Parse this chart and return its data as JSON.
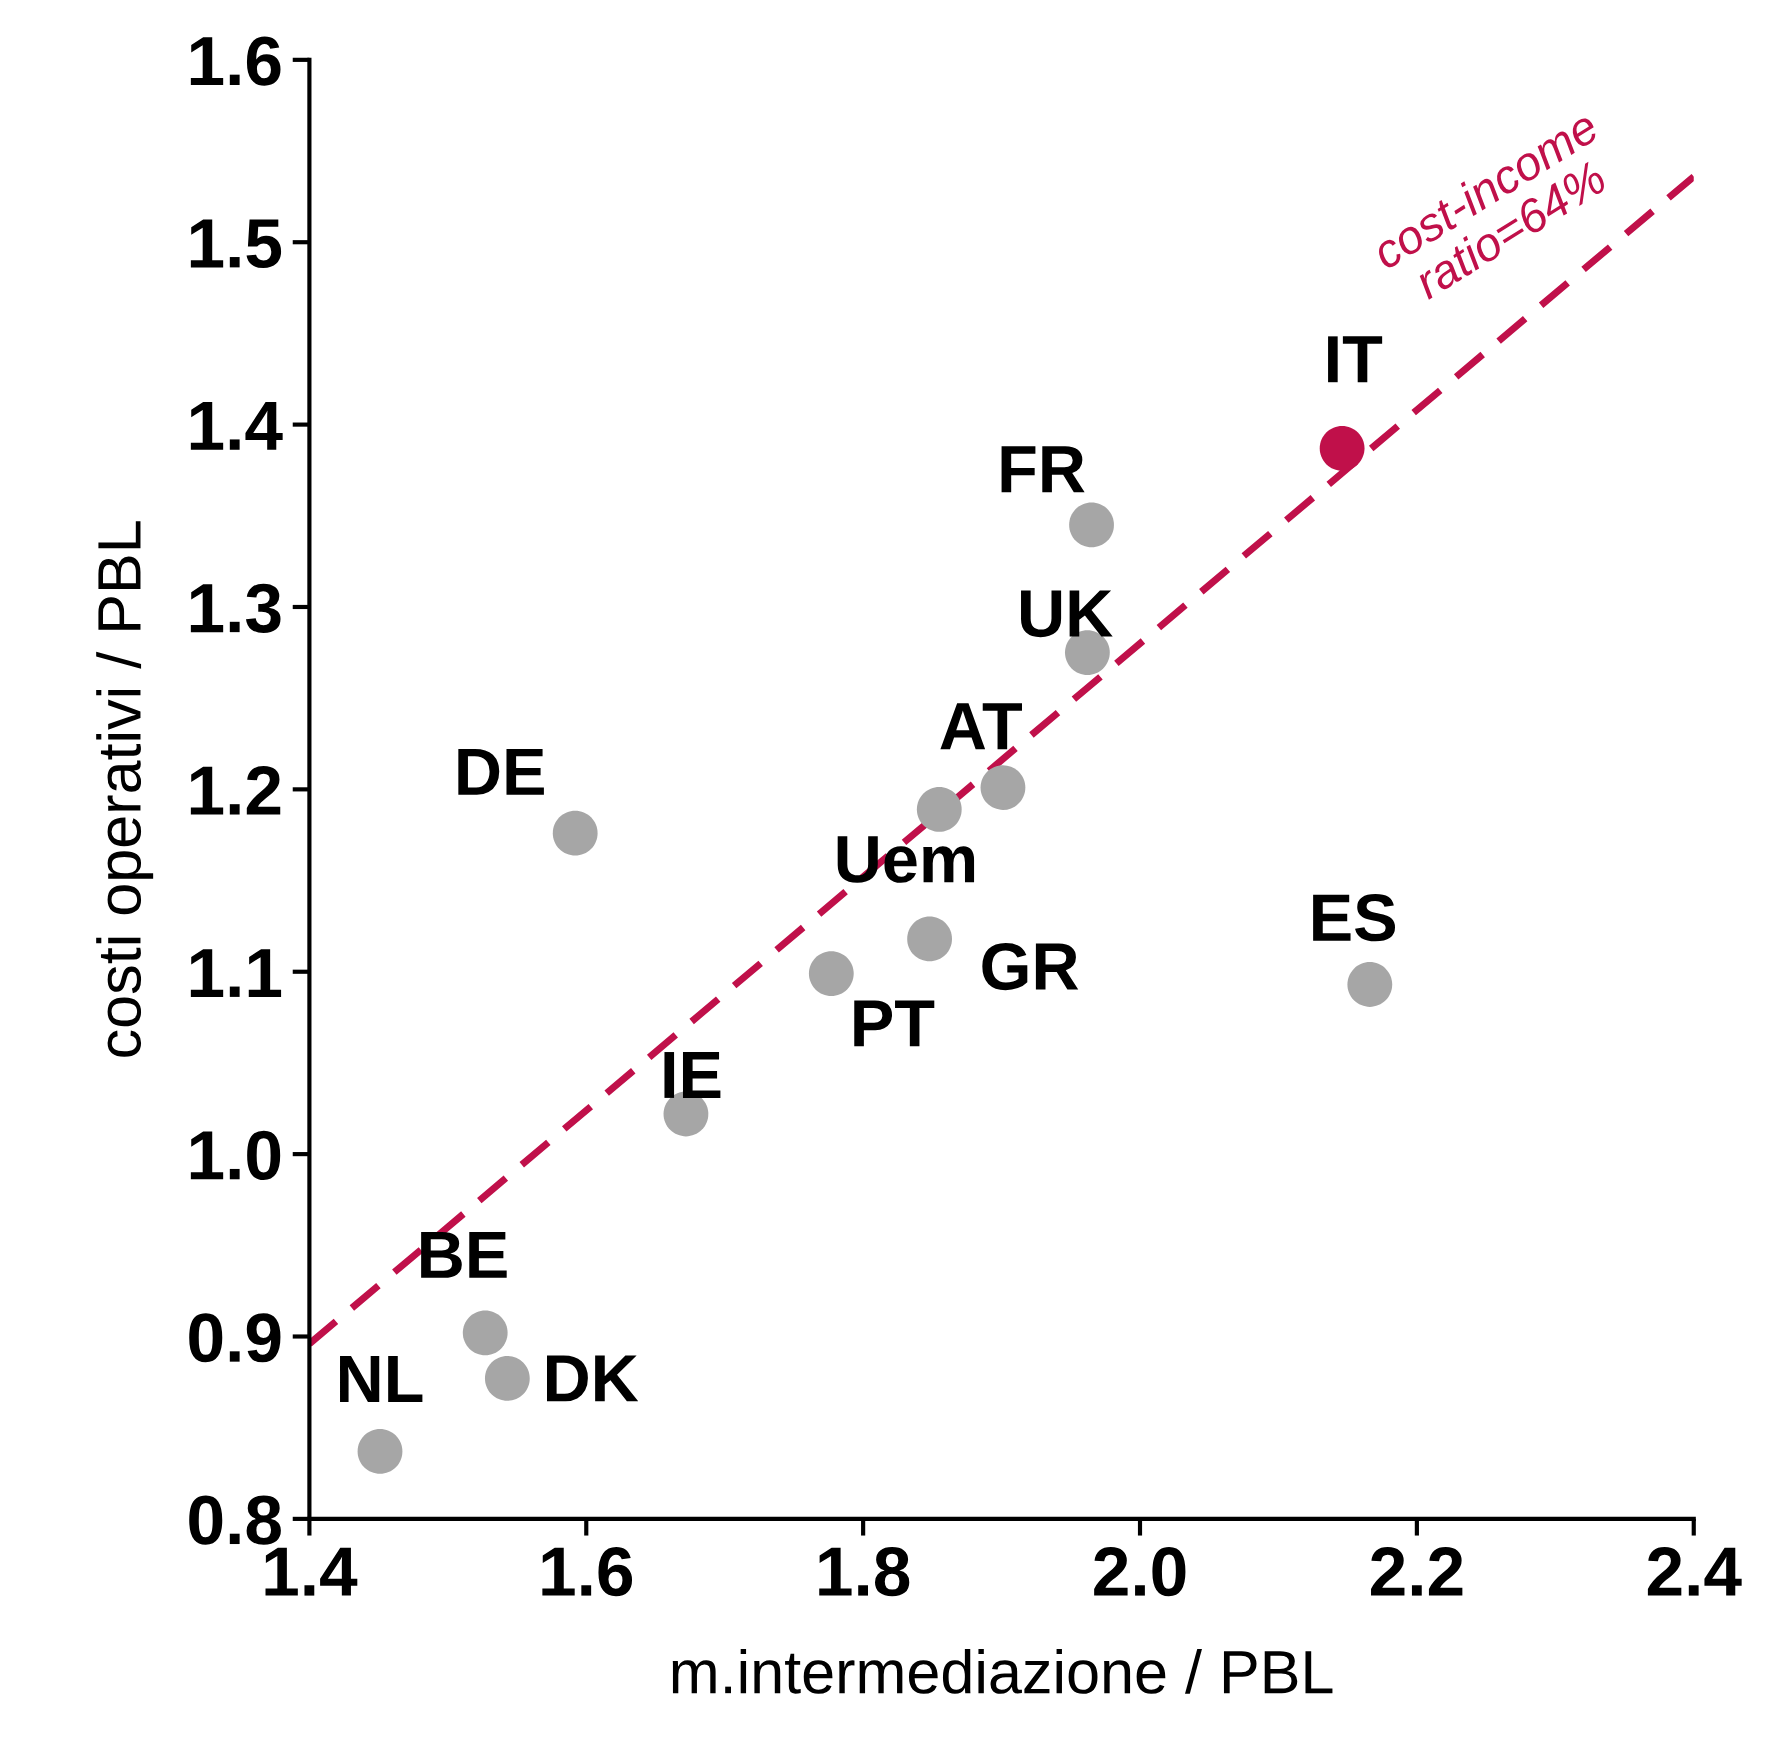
{
  "chart_data": {
    "type": "scatter",
    "xlabel": "m.intermediazione / PBL",
    "ylabel": "costi operativi / PBL",
    "xlim": [
      1.4,
      2.4
    ],
    "ylim": [
      0.8,
      1.6
    ],
    "xticks": [
      {
        "value": 1.4,
        "label": "1.4"
      },
      {
        "value": 1.6,
        "label": "1.6"
      },
      {
        "value": 1.8,
        "label": "1.8"
      },
      {
        "value": 2.0,
        "label": "2.0"
      },
      {
        "value": 2.2,
        "label": "2.2"
      },
      {
        "value": 2.4,
        "label": "2.4"
      }
    ],
    "yticks": [
      {
        "value": 0.8,
        "label": "0.8"
      },
      {
        "value": 0.9,
        "label": "0.9"
      },
      {
        "value": 1.0,
        "label": "1.0"
      },
      {
        "value": 1.1,
        "label": "1.1"
      },
      {
        "value": 1.2,
        "label": "1.2"
      },
      {
        "value": 1.3,
        "label": "1.3"
      },
      {
        "value": 1.4,
        "label": "1.4"
      },
      {
        "value": 1.5,
        "label": "1.5"
      },
      {
        "value": 1.6,
        "label": "1.6"
      }
    ],
    "grid": false,
    "legend": false,
    "marker": "circle",
    "series": [
      {
        "name": "NL",
        "color": "#a6a6a6",
        "x": [
          1.451
        ],
        "values": [
          0.837
        ]
      },
      {
        "name": "BE",
        "color": "#a6a6a6",
        "x": [
          1.527
        ],
        "values": [
          0.902
        ]
      },
      {
        "name": "DK",
        "color": "#a6a6a6",
        "x": [
          1.543
        ],
        "values": [
          0.877
        ]
      },
      {
        "name": "DE",
        "color": "#a6a6a6",
        "x": [
          1.592
        ],
        "values": [
          1.176
        ]
      },
      {
        "name": "IE",
        "color": "#a6a6a6",
        "x": [
          1.672
        ],
        "values": [
          1.022
        ]
      },
      {
        "name": "PT",
        "color": "#a6a6a6",
        "x": [
          1.777
        ],
        "values": [
          1.099
        ]
      },
      {
        "name": "GR",
        "color": "#a6a6a6",
        "x": [
          1.848
        ],
        "values": [
          1.118
        ]
      },
      {
        "name": "Uem",
        "color": "#a6a6a6",
        "x": [
          1.855
        ],
        "values": [
          1.189
        ]
      },
      {
        "name": "AT",
        "color": "#a6a6a6",
        "x": [
          1.901
        ],
        "values": [
          1.201
        ]
      },
      {
        "name": "UK",
        "color": "#a6a6a6",
        "x": [
          1.962
        ],
        "values": [
          1.275
        ]
      },
      {
        "name": "FR",
        "color": "#a6a6a6",
        "x": [
          1.965
        ],
        "values": [
          1.345
        ]
      },
      {
        "name": "IT",
        "color": "#c0104a",
        "x": [
          2.146
        ],
        "values": [
          1.387
        ]
      },
      {
        "name": "ES",
        "color": "#a6a6a6",
        "x": [
          2.166
        ],
        "values": [
          1.093
        ]
      },
      {
        "type": "line",
        "color": "#c0104a",
        "line_style": "dashed",
        "marker": "none",
        "x": [
          1.4,
          2.4
        ],
        "values": [
          0.896,
          1.536
        ]
      }
    ],
    "annotations": [
      "cost-income\nratio=64%"
    ]
  }
}
